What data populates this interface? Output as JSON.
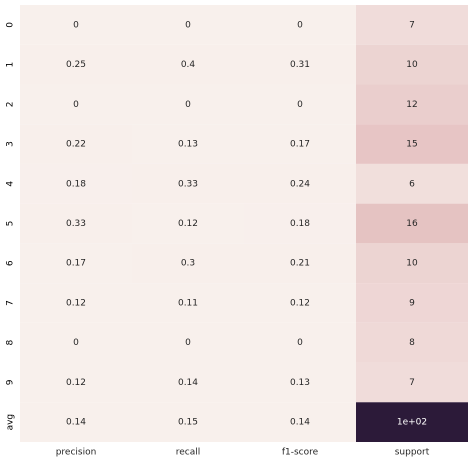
{
  "chart_data": {
    "type": "heatmap",
    "rows": [
      "0",
      "1",
      "2",
      "3",
      "4",
      "5",
      "6",
      "7",
      "8",
      "9",
      "avg"
    ],
    "columns": [
      "precision",
      "recall",
      "f1-score",
      "support"
    ],
    "values": [
      [
        0,
        0,
        0,
        7
      ],
      [
        0.25,
        0.4,
        0.31,
        10
      ],
      [
        0,
        0,
        0,
        12
      ],
      [
        0.22,
        0.13,
        0.17,
        15
      ],
      [
        0.18,
        0.33,
        0.24,
        6
      ],
      [
        0.33,
        0.12,
        0.18,
        16
      ],
      [
        0.17,
        0.3,
        0.21,
        10
      ],
      [
        0.12,
        0.11,
        0.12,
        9
      ],
      [
        0,
        0,
        0,
        8
      ],
      [
        0.12,
        0.14,
        0.13,
        7
      ],
      [
        0.14,
        0.15,
        0.14,
        100
      ]
    ],
    "value_labels": [
      [
        "0",
        "0",
        "0",
        "7"
      ],
      [
        "0.25",
        "0.4",
        "0.31",
        "10"
      ],
      [
        "0",
        "0",
        "0",
        "12"
      ],
      [
        "0.22",
        "0.13",
        "0.17",
        "15"
      ],
      [
        "0.18",
        "0.33",
        "0.24",
        "6"
      ],
      [
        "0.33",
        "0.12",
        "0.18",
        "16"
      ],
      [
        "0.17",
        "0.3",
        "0.21",
        "10"
      ],
      [
        "0.12",
        "0.11",
        "0.12",
        "9"
      ],
      [
        "0",
        "0",
        "0",
        "8"
      ],
      [
        "0.12",
        "0.14",
        "0.13",
        "7"
      ],
      [
        "0.14",
        "0.15",
        "0.14",
        "1e+02"
      ]
    ],
    "clim": [
      0,
      100
    ],
    "colormap": [
      "#f8f0ec",
      "#dba9ab",
      "#a0607a",
      "#5e3457",
      "#2c1a39"
    ]
  }
}
